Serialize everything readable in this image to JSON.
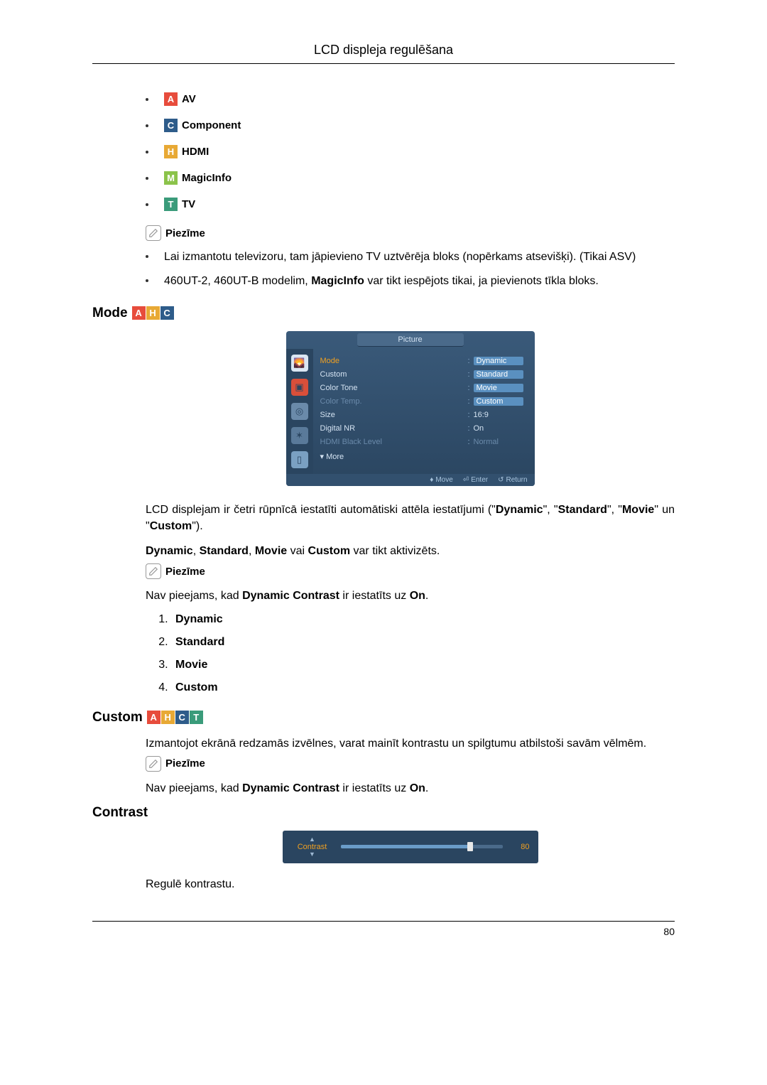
{
  "header": {
    "title": "LCD displeja regulēšana"
  },
  "icon": {
    "A": {
      "letter": "A",
      "bg": "#e74c3c"
    },
    "C": {
      "letter": "C",
      "bg": "#2e5c8a"
    },
    "H": {
      "letter": "H",
      "bg": "#e8a935"
    },
    "M": {
      "letter": "M",
      "bg": "#8bc34a"
    },
    "T": {
      "letter": "T",
      "bg": "#3a9b7a"
    }
  },
  "inputs": {
    "items": [
      {
        "icon": "A",
        "label": "AV"
      },
      {
        "icon": "C",
        "label": "Component"
      },
      {
        "icon": "H",
        "label": "HDMI"
      },
      {
        "icon": "M",
        "label": "MagicInfo"
      },
      {
        "icon": "T",
        "label": "TV"
      }
    ]
  },
  "note_label": "Piezīme",
  "notes_top": [
    "Lai izmantotu televizoru, tam jāpievieno TV uztvērēja bloks (nopērkams atsevišķi). (Tikai ASV)",
    "460UT-2, 460UT-B modelim, <b>MagicInfo</b> var tikt iespējots tikai, ja pievienots tīkla bloks."
  ],
  "mode": {
    "title": "Mode",
    "icons": [
      "A",
      "H",
      "C"
    ],
    "osd": {
      "title": "Picture",
      "side_icons": [
        {
          "bg": "#dae6f2",
          "glyph": "🌄"
        },
        {
          "bg": "#d94f3a",
          "glyph": "▣"
        },
        {
          "bg": "#6a8aaa",
          "glyph": "◎"
        },
        {
          "bg": "#5a7a9a",
          "glyph": "✶"
        },
        {
          "bg": "#7aa0c2",
          "glyph": "▯"
        }
      ],
      "rows": [
        {
          "label": "Mode",
          "value": "Dynamic",
          "selected": true,
          "highlight": true
        },
        {
          "label": "Custom",
          "value": "Standard",
          "highlight": true
        },
        {
          "label": "Color Tone",
          "value": "Movie",
          "highlight": true
        },
        {
          "label": "Color Temp.",
          "value": "Custom",
          "dim": true,
          "highlight": true
        },
        {
          "label": "Size",
          "value": "16:9"
        },
        {
          "label": "Digital NR",
          "value": "On"
        },
        {
          "label": "HDMI Black Level",
          "value": "Normal",
          "dim": true
        }
      ],
      "more": "▾ More",
      "footer": {
        "move": "Move",
        "enter": "Enter",
        "ret": "Return"
      }
    },
    "para1_a": "LCD displejam ir četri rūpnīcā iestatīti automātiski attēla iestatījumi (\"",
    "para1_b": "\", \"",
    "para1_c": "\" un \"",
    "para1_d": "\").",
    "words": {
      "dynamic": "Dynamic",
      "standard": "Standard",
      "movie": "Movie",
      "custom": "Custom"
    },
    "para2_a": "Dynamic",
    "para2_b": "Standard",
    "para2_c": "Movie",
    "para2_d": "Custom",
    "para2_mid1": ", ",
    "para2_mid2": " vai ",
    "para2_end": " var tikt aktivizēts.",
    "note_para_a": "Nav pieejams, kad ",
    "note_para_b": "Dynamic Contrast",
    "note_para_c": " ir iestatīts uz ",
    "note_para_d": "On",
    "note_para_e": ".",
    "list": [
      "Dynamic",
      "Standard",
      "Movie",
      "Custom"
    ]
  },
  "custom": {
    "title": "Custom",
    "icons": [
      "A",
      "H",
      "C",
      "T"
    ],
    "para": "Izmantojot ekrānā redzamās izvēlnes, varat mainīt kontrastu un spilgtumu atbilstoši savām vēlmēm."
  },
  "contrast": {
    "title": "Contrast",
    "label": "Contrast",
    "value": 80,
    "fill_pct": 80,
    "para": "Regulē kontrastu."
  },
  "page_num": "80"
}
